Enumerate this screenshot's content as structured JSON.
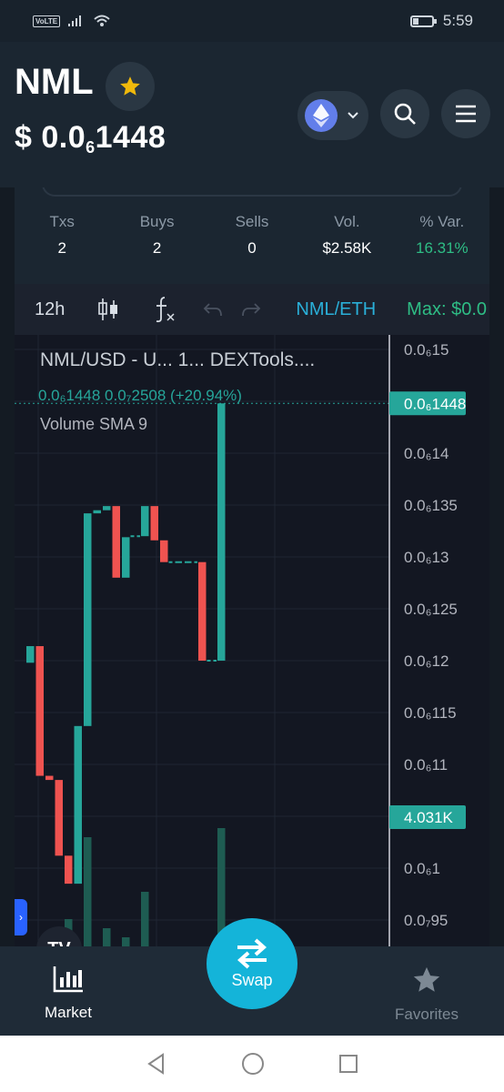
{
  "status_bar": {
    "volte": "VoLTE",
    "time": "5:59"
  },
  "header": {
    "token": "NML",
    "price_prefix": "$ 0.0",
    "price_sub": "6",
    "price_suffix": "1448"
  },
  "stats": [
    {
      "label": "Txs",
      "value": "2"
    },
    {
      "label": "Buys",
      "value": "2"
    },
    {
      "label": "Sells",
      "value": "0"
    },
    {
      "label": "Vol.",
      "value": "$2.58K"
    },
    {
      "label": "% Var.",
      "value": "16.31%"
    }
  ],
  "toolbar": {
    "interval": "12h",
    "pair": "NML/ETH",
    "max": "Max: $0.0"
  },
  "legend": {
    "title": "NML/USD - U...   1...   DEXTools....",
    "values": "0.0₆1448  0.0₇2508 (+20.94%)",
    "volume": "Volume SMA 9"
  },
  "chart_data": {
    "type": "candlestick",
    "y_axis_ticks": [
      "0.0₆15",
      "0.0₆14",
      "0.0₆135",
      "0.0₆13",
      "0.0₆125",
      "0.0₆12",
      "0.0₆115",
      "0.0₆11",
      "0.0₆1",
      "0.0₇95"
    ],
    "price_label": "0.0₆1448",
    "volume_label": "4.031K",
    "candles": [
      {
        "o": 1.198,
        "c": 1.214,
        "h": 1.214,
        "l": 1.198
      },
      {
        "o": 1.214,
        "c": 1.089,
        "h": 1.214,
        "l": 1.089
      },
      {
        "o": 1.089,
        "c": 1.085,
        "h": 1.089,
        "l": 1.085
      },
      {
        "o": 1.085,
        "c": 1.012,
        "h": 1.085,
        "l": 1.012
      },
      {
        "o": 1.012,
        "c": 0.985,
        "h": 1.012,
        "l": 0.985
      },
      {
        "o": 0.985,
        "c": 1.137,
        "h": 1.137,
        "l": 0.985
      },
      {
        "o": 1.137,
        "c": 1.342,
        "h": 1.342,
        "l": 1.137
      },
      {
        "o": 1.342,
        "c": 1.345,
        "h": 1.345,
        "l": 1.342
      },
      {
        "o": 1.345,
        "c": 1.349,
        "h": 1.349,
        "l": 1.345
      },
      {
        "o": 1.349,
        "c": 1.28,
        "h": 1.349,
        "l": 1.28
      },
      {
        "o": 1.28,
        "c": 1.319,
        "h": 1.319,
        "l": 1.28
      },
      {
        "o": 1.319,
        "c": 1.32,
        "h": 1.32,
        "l": 1.319
      },
      {
        "o": 1.32,
        "c": 1.349,
        "h": 1.349,
        "l": 1.32
      },
      {
        "o": 1.349,
        "c": 1.316,
        "h": 1.349,
        "l": 1.316
      },
      {
        "o": 1.316,
        "c": 1.295,
        "h": 1.316,
        "l": 1.295
      },
      {
        "o": 1.295,
        "c": 1.295,
        "h": 1.295,
        "l": 1.295
      },
      {
        "o": 1.295,
        "c": 1.295,
        "h": 1.295,
        "l": 1.295
      },
      {
        "o": 1.295,
        "c": 1.295,
        "h": 1.295,
        "l": 1.295
      },
      {
        "o": 1.295,
        "c": 1.2,
        "h": 1.295,
        "l": 1.2
      },
      {
        "o": 1.2,
        "c": 1.2,
        "h": 1.2,
        "l": 1.2
      },
      {
        "o": 1.2,
        "c": 1.448,
        "h": 1.448,
        "l": 1.2
      }
    ],
    "volumes": [
      0,
      0,
      0,
      0,
      0.3,
      0,
      1.2,
      0,
      0.2,
      0,
      0.1,
      0,
      0.6,
      0,
      0,
      0,
      0,
      0,
      0,
      0,
      1.3
    ]
  },
  "nav": {
    "market": "Market",
    "swap": "Swap",
    "favorites": "Favorites"
  },
  "colors": {
    "up": "#26a69a",
    "down": "#ef5350",
    "accent": "#14b4d9"
  }
}
